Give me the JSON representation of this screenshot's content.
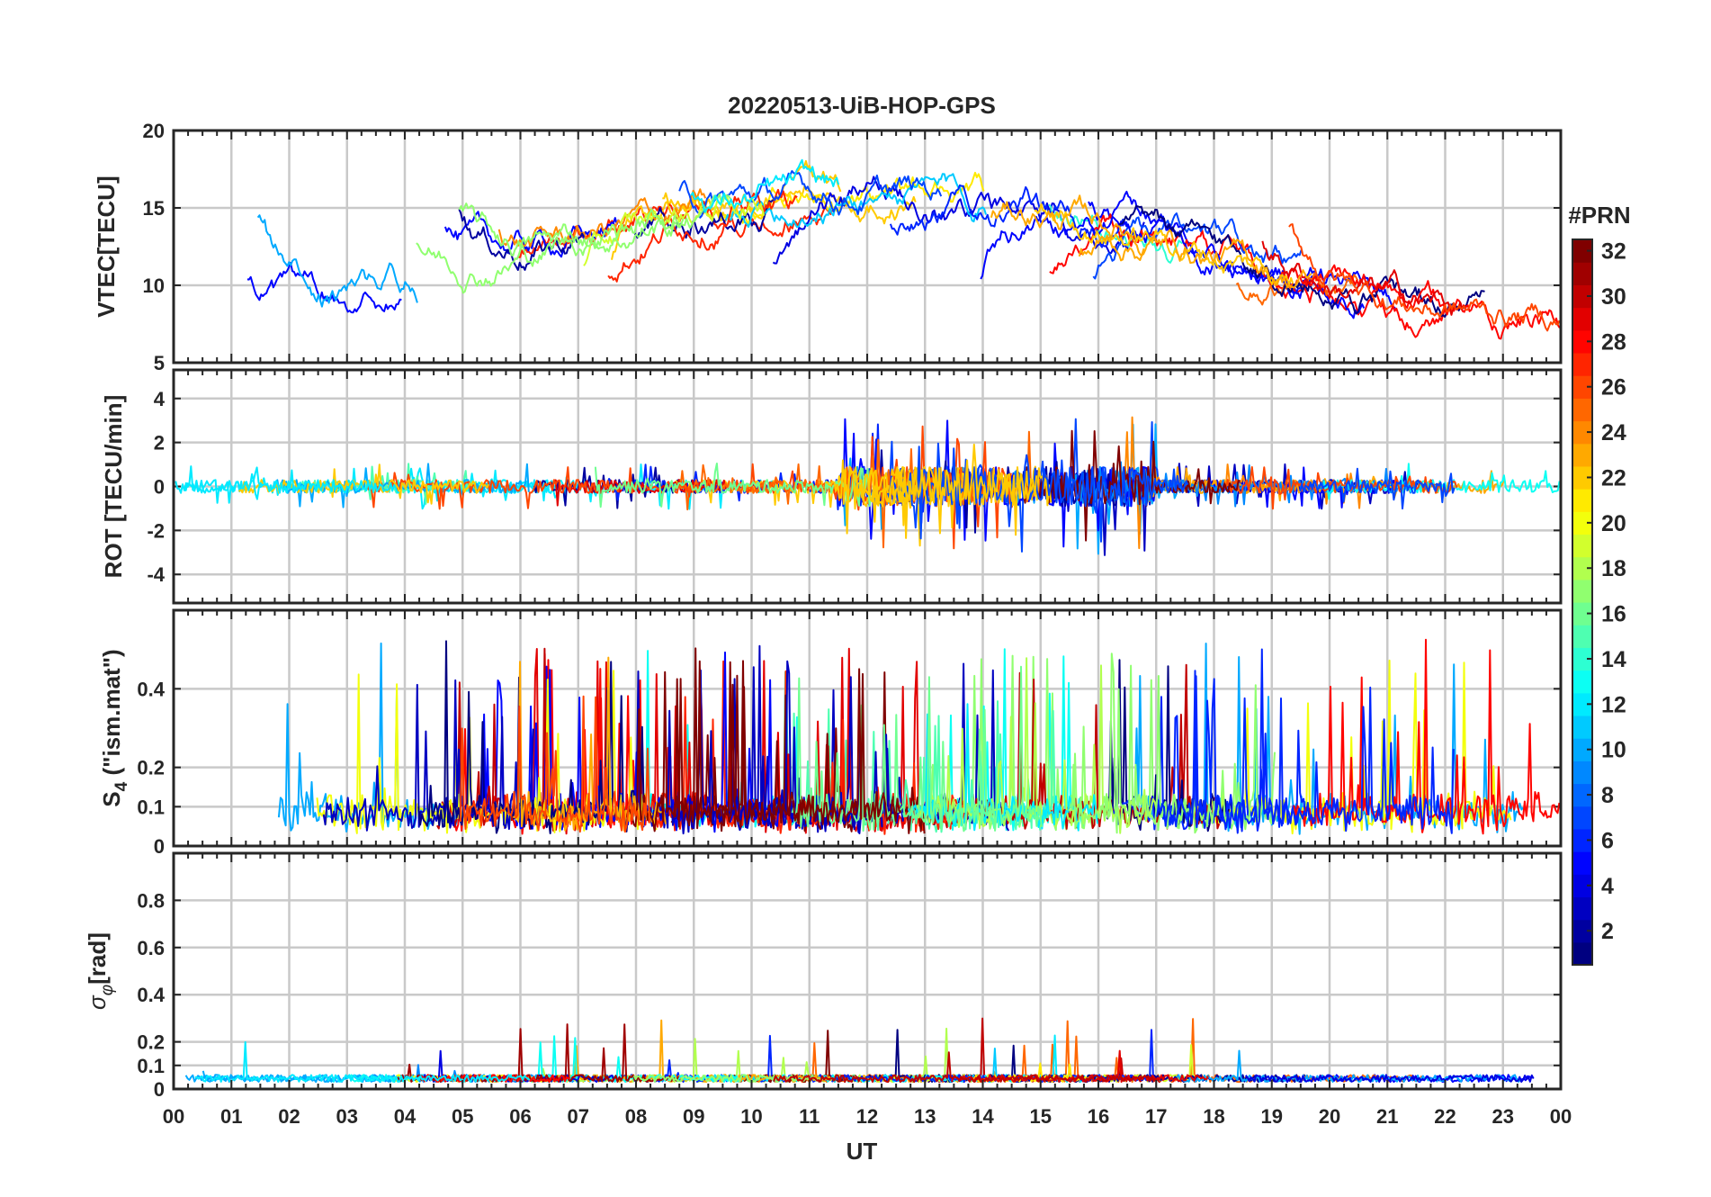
{
  "chart_data": {
    "type": "line",
    "title": "20220513-UiB-HOP-GPS",
    "xlabel": "UT",
    "x_tick_labels": [
      "00",
      "01",
      "02",
      "03",
      "04",
      "05",
      "06",
      "07",
      "08",
      "09",
      "10",
      "11",
      "12",
      "13",
      "14",
      "15",
      "16",
      "17",
      "18",
      "19",
      "20",
      "21",
      "22",
      "23",
      "00"
    ],
    "x_range_hours": [
      0,
      24
    ],
    "grid": true,
    "colorbar": {
      "title": "#PRN",
      "range": [
        1,
        32
      ],
      "tick_labels": [
        "2",
        "4",
        "6",
        "8",
        "10",
        "12",
        "14",
        "16",
        "18",
        "20",
        "22",
        "24",
        "26",
        "28",
        "30",
        "32"
      ],
      "colormap": "jet",
      "placement": "right"
    },
    "panels": [
      {
        "name": "vtec",
        "ylabel": "VTEC[TECU]",
        "ylim": [
          5,
          20
        ],
        "y_ticks": [
          5,
          10,
          15,
          20
        ],
        "y_tick_labels": [
          "5",
          "10",
          "15",
          "20"
        ]
      },
      {
        "name": "rot",
        "ylabel": "ROT [TECU/min]",
        "ylim": [
          -5.3,
          5.3
        ],
        "y_ticks": [
          -4,
          -2,
          0,
          2,
          4
        ],
        "y_tick_labels": [
          "-4",
          "-2",
          "0",
          "2",
          "4"
        ]
      },
      {
        "name": "s4",
        "ylabel_main": "S",
        "ylabel_sub": "4",
        "ylabel_rest": " (\"ism.mat\")",
        "ylim": [
          0,
          0.6
        ],
        "y_ticks": [
          0,
          0.1,
          0.2,
          0.4
        ],
        "y_tick_labels": [
          "0",
          "0.1",
          "0.2",
          "0.4"
        ]
      },
      {
        "name": "sigma_phi",
        "ylabel_main": "σ",
        "ylabel_sub": "φ",
        "ylabel_rest": "[rad]",
        "ylim": [
          0,
          1
        ],
        "y_ticks": [
          0,
          0.1,
          0.2,
          0.4,
          0.6,
          0.8
        ],
        "y_tick_labels": [
          "0",
          "0.1",
          "0.2",
          "0.4",
          "0.6",
          "0.8"
        ]
      }
    ]
  }
}
